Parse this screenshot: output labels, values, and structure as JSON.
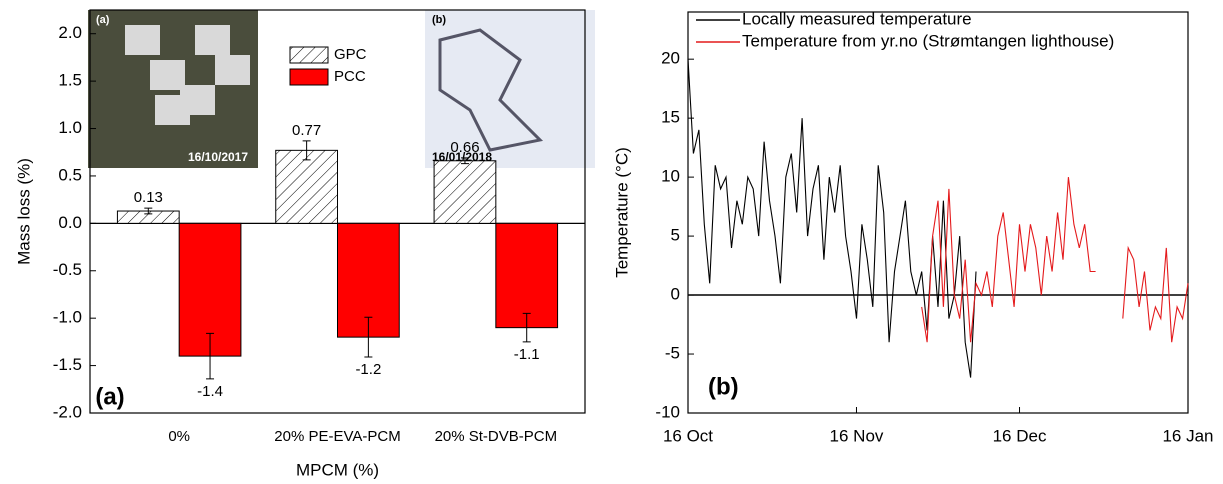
{
  "chart_data": [
    {
      "type": "bar",
      "categories": [
        "0%",
        "20% PE-EVA-PCM",
        "20% St-DVB-PCM"
      ],
      "series": [
        {
          "name": "GPC",
          "color": "#ffffff",
          "hatch": true,
          "values": [
            0.13,
            0.77,
            0.66
          ],
          "errors": [
            0.03,
            0.1,
            0.03
          ]
        },
        {
          "name": "PCC",
          "color": "#ff0000",
          "hatch": false,
          "values": [
            -1.4,
            -1.2,
            -1.1
          ],
          "errors": [
            0.24,
            0.21,
            0.15
          ]
        }
      ],
      "ylabel": "Mass loss (%)",
      "xlabel": "MPCM (%)",
      "ylim": [
        -2.0,
        2.25
      ],
      "yticks": [
        {
          "value": -2,
          "label": "-2.0"
        },
        -1.5,
        {
          "value": -1,
          "label": "-1.0"
        },
        -0.5,
        {
          "value": 0,
          "label": "0.0"
        },
        0.5,
        {
          "value": 1,
          "label": "1.0"
        },
        1.5,
        {
          "value": 2,
          "label": "2.0"
        }
      ],
      "annotations": [
        "(a)",
        "(a)",
        "16/10/2017",
        "(b)",
        "16/01/2018"
      ],
      "legend": "upper center"
    },
    {
      "type": "line",
      "ylabel": "Temperature (°C)",
      "x": [
        0,
        1,
        2,
        3,
        4,
        5,
        6,
        7,
        8,
        9,
        10,
        11,
        12,
        13,
        14,
        15,
        16,
        17,
        18,
        19,
        20,
        21,
        22,
        23,
        24,
        25,
        26,
        27,
        28,
        29,
        30,
        31,
        32,
        33,
        34,
        35,
        36,
        37,
        38,
        39,
        40,
        41,
        42,
        43,
        44,
        45,
        46,
        47,
        48,
        49,
        50,
        51,
        52,
        53,
        54,
        55,
        56,
        57,
        58,
        59,
        60,
        61,
        62,
        63,
        64,
        65,
        66,
        67,
        68,
        69,
        70,
        71,
        72,
        73,
        74,
        75,
        76,
        77,
        78,
        79,
        80,
        81,
        82,
        83,
        84,
        85,
        86,
        87,
        88,
        89,
        90,
        91,
        92
      ],
      "series": [
        {
          "name": "Locally measured temperature",
          "color": "#000000",
          "values": [
            20,
            12,
            14,
            6,
            1,
            11,
            9,
            10,
            4,
            8,
            6,
            10,
            9,
            5,
            13,
            8,
            5,
            1,
            10,
            12,
            7,
            15,
            5,
            9,
            11,
            3,
            10,
            7,
            11,
            5,
            2,
            -2,
            6,
            3,
            -1,
            11,
            7,
            -4,
            2,
            5,
            8,
            2,
            0,
            2,
            -3,
            5,
            -1,
            8,
            -2,
            0,
            5,
            -4,
            -7,
            2,
            null,
            null,
            null,
            null,
            null,
            null,
            null,
            null,
            null,
            null,
            null,
            null,
            null,
            null,
            null,
            null,
            null,
            null,
            null,
            null,
            null,
            null,
            null,
            null,
            null,
            null,
            null,
            null,
            null,
            null,
            null,
            null,
            null,
            null,
            null,
            null,
            null,
            null,
            null
          ]
        },
        {
          "name": "Temperature from yr.no (Strømtangen lighthouse)",
          "color": "#e41a1c",
          "values": [
            null,
            null,
            null,
            null,
            null,
            null,
            null,
            null,
            null,
            null,
            null,
            null,
            null,
            null,
            null,
            null,
            null,
            null,
            null,
            null,
            null,
            null,
            null,
            null,
            null,
            null,
            null,
            null,
            null,
            null,
            null,
            null,
            null,
            null,
            null,
            null,
            null,
            null,
            null,
            null,
            null,
            null,
            null,
            -1,
            -4,
            5,
            8,
            -1,
            9,
            0,
            -2,
            3,
            -4,
            1,
            0,
            2,
            -1,
            5,
            7,
            3,
            -1,
            6,
            2,
            6,
            4,
            0,
            5,
            2,
            7,
            3,
            10,
            6,
            4,
            6,
            2,
            2,
            null,
            null,
            null,
            null,
            -2,
            4,
            3,
            -1,
            2,
            -3,
            -1,
            -2,
            4,
            -4,
            -1,
            -2,
            1
          ]
        }
      ],
      "xlim": [
        0,
        92
      ],
      "xticks": [
        {
          "value": 0,
          "label": "16 Oct"
        },
        {
          "value": 31,
          "label": "16 Nov"
        },
        {
          "value": 61,
          "label": "16 Dec"
        },
        {
          "value": 92,
          "label": "16 Jan"
        }
      ],
      "ylim": [
        -10,
        24
      ],
      "yticks": [
        -10,
        -5,
        0,
        5,
        10,
        15,
        20
      ],
      "annotations": [
        "(b)"
      ],
      "legend": "upper left"
    }
  ]
}
